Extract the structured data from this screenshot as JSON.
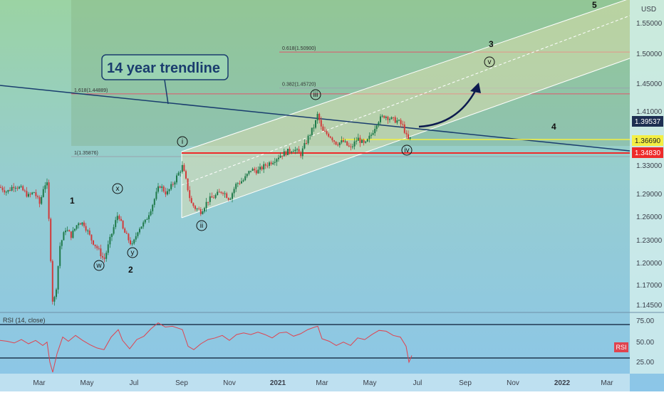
{
  "chart_data": {
    "type": "candlestick",
    "instrument_currency": "USD",
    "y_range": [
      1.135,
      1.575
    ],
    "price_ticks": [
      "1.55000",
      "1.50000",
      "1.45000",
      "1.41000",
      "1.36690",
      "1.33000",
      "1.29000",
      "1.26000",
      "1.23000",
      "1.20000",
      "1.17000",
      "1.14500"
    ],
    "x_labels": [
      "Mar",
      "May",
      "Jul",
      "Sep",
      "Nov",
      "2021",
      "Mar",
      "May",
      "Jul",
      "Sep",
      "Nov",
      "2022",
      "Mar"
    ],
    "last_price": "1.39537",
    "level_yellow": "1.36690",
    "level_red": "1.34830",
    "fib_levels": [
      {
        "label": "0.618(1.50900)",
        "value": 1.509,
        "color": "#e0566b"
      },
      {
        "label": "0.382(1.45720)",
        "value": 1.4572,
        "color": "#9aa3ad"
      },
      {
        "label": "1.618(1.44889)",
        "value": 1.44889,
        "color": "#e0566b"
      },
      {
        "label": "1(1.35876)",
        "value": 1.35876,
        "color": "#9aa3ad"
      }
    ],
    "annotation": "14 year trendline",
    "wave_labels": {
      "one": "1",
      "two": "2",
      "three": "3",
      "four": "4",
      "five": "5",
      "w": "w",
      "x": "x",
      "y": "y",
      "i": "i",
      "ii": "ii",
      "iii": "iii",
      "iv": "iv",
      "v": "v"
    },
    "price_path": [
      [
        0,
        1.315
      ],
      [
        10,
        1.308
      ],
      [
        20,
        1.318
      ],
      [
        30,
        1.312
      ],
      [
        40,
        1.302
      ],
      [
        48,
        1.308
      ],
      [
        56,
        1.29
      ],
      [
        62,
        1.32
      ],
      [
        66,
        1.318
      ],
      [
        70,
        1.24
      ],
      [
        74,
        1.148
      ],
      [
        78,
        1.16
      ],
      [
        84,
        1.23
      ],
      [
        92,
        1.255
      ],
      [
        100,
        1.245
      ],
      [
        110,
        1.265
      ],
      [
        118,
        1.262
      ],
      [
        128,
        1.24
      ],
      [
        138,
        1.225
      ],
      [
        146,
        1.21
      ],
      [
        156,
        1.245
      ],
      [
        166,
        1.278
      ],
      [
        172,
        1.255
      ],
      [
        180,
        1.24
      ],
      [
        186,
        1.23
      ],
      [
        194,
        1.255
      ],
      [
        204,
        1.265
      ],
      [
        214,
        1.29
      ],
      [
        224,
        1.318
      ],
      [
        234,
        1.305
      ],
      [
        244,
        1.322
      ],
      [
        256,
        1.345
      ],
      [
        262,
        1.32
      ],
      [
        268,
        1.292
      ],
      [
        274,
        1.285
      ],
      [
        282,
        1.28
      ],
      [
        292,
        1.296
      ],
      [
        302,
        1.302
      ],
      [
        312,
        1.31
      ],
      [
        322,
        1.298
      ],
      [
        332,
        1.32
      ],
      [
        342,
        1.325
      ],
      [
        352,
        1.34
      ],
      [
        362,
        1.338
      ],
      [
        372,
        1.346
      ],
      [
        382,
        1.352
      ],
      [
        392,
        1.36
      ],
      [
        402,
        1.365
      ],
      [
        412,
        1.37
      ],
      [
        422,
        1.362
      ],
      [
        432,
        1.385
      ],
      [
        442,
        1.405
      ],
      [
        446,
        1.42
      ],
      [
        452,
        1.395
      ],
      [
        462,
        1.39
      ],
      [
        472,
        1.378
      ],
      [
        482,
        1.38
      ],
      [
        492,
        1.37
      ],
      [
        502,
        1.385
      ],
      [
        512,
        1.375
      ],
      [
        522,
        1.392
      ],
      [
        530,
        1.41
      ],
      [
        540,
        1.418
      ],
      [
        550,
        1.412
      ],
      [
        558,
        1.41
      ],
      [
        566,
        1.402
      ],
      [
        572,
        1.382
      ],
      [
        576,
        1.385
      ]
    ],
    "rsi": {
      "label": "RSI (14, close)",
      "badge": "RSI",
      "ticks": [
        "75.00",
        "50.00",
        "25.00"
      ],
      "upper": 70,
      "lower": 30,
      "values": [
        [
          0,
          51
        ],
        [
          10,
          50
        ],
        [
          20,
          48
        ],
        [
          30,
          52
        ],
        [
          40,
          47
        ],
        [
          50,
          51
        ],
        [
          60,
          45
        ],
        [
          66,
          49
        ],
        [
          70,
          25
        ],
        [
          74,
          13
        ],
        [
          80,
          35
        ],
        [
          88,
          55
        ],
        [
          96,
          50
        ],
        [
          106,
          57
        ],
        [
          116,
          51
        ],
        [
          126,
          46
        ],
        [
          136,
          42
        ],
        [
          146,
          40
        ],
        [
          156,
          55
        ],
        [
          166,
          64
        ],
        [
          172,
          51
        ],
        [
          182,
          41
        ],
        [
          192,
          52
        ],
        [
          202,
          56
        ],
        [
          212,
          65
        ],
        [
          222,
          72
        ],
        [
          232,
          67
        ],
        [
          242,
          68
        ],
        [
          256,
          64
        ],
        [
          264,
          44
        ],
        [
          272,
          40
        ],
        [
          282,
          47
        ],
        [
          292,
          52
        ],
        [
          302,
          54
        ],
        [
          312,
          57
        ],
        [
          322,
          51
        ],
        [
          332,
          58
        ],
        [
          342,
          60
        ],
        [
          352,
          58
        ],
        [
          362,
          61
        ],
        [
          372,
          58
        ],
        [
          382,
          54
        ],
        [
          392,
          60
        ],
        [
          402,
          61
        ],
        [
          412,
          56
        ],
        [
          422,
          59
        ],
        [
          432,
          64
        ],
        [
          442,
          67
        ],
        [
          446,
          68
        ],
        [
          452,
          53
        ],
        [
          462,
          50
        ],
        [
          472,
          45
        ],
        [
          482,
          49
        ],
        [
          492,
          45
        ],
        [
          502,
          54
        ],
        [
          512,
          52
        ],
        [
          522,
          58
        ],
        [
          532,
          63
        ],
        [
          542,
          62
        ],
        [
          552,
          57
        ],
        [
          562,
          55
        ],
        [
          570,
          44
        ],
        [
          574,
          25
        ],
        [
          578,
          33
        ]
      ]
    }
  }
}
